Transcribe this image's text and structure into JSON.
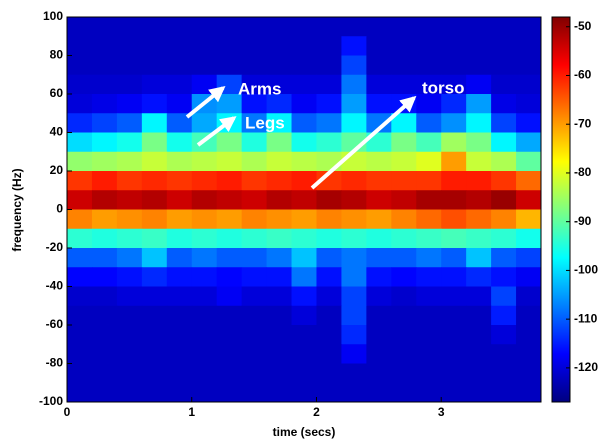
{
  "chart_data": {
    "type": "heatmap",
    "xlabel": "time (secs)",
    "ylabel": "frequency (Hz)",
    "x": [
      0.1,
      0.3,
      0.5,
      0.7,
      0.9,
      1.1,
      1.3,
      1.5,
      1.7,
      1.9,
      2.1,
      2.3,
      2.5,
      2.7,
      2.9,
      3.1,
      3.3,
      3.5,
      3.7
    ],
    "y": [
      95,
      85,
      75,
      65,
      55,
      45,
      35,
      25,
      15,
      5,
      -5,
      -15,
      -25,
      -35,
      -45,
      -55,
      -65,
      -75,
      -85,
      -95
    ],
    "values": [
      [
        -122,
        -122,
        -122,
        -122,
        -122,
        -122,
        -122,
        -122,
        -122,
        -122,
        -122,
        -122,
        -122,
        -122,
        -122,
        -122,
        -122,
        -122,
        -122
      ],
      [
        -122,
        -122,
        -122,
        -122,
        -122,
        -122,
        -122,
        -122,
        -122,
        -122,
        -122,
        -116,
        -122,
        -122,
        -122,
        -122,
        -122,
        -122,
        -122
      ],
      [
        -122,
        -122,
        -122,
        -122,
        -122,
        -122,
        -122,
        -122,
        -122,
        -122,
        -122,
        -112,
        -122,
        -122,
        -122,
        -122,
        -122,
        -122,
        -122
      ],
      [
        -121,
        -121,
        -121,
        -120,
        -120,
        -118,
        -112,
        -120,
        -120,
        -120,
        -120,
        -108,
        -120,
        -120,
        -120,
        -120,
        -118,
        -121,
        -121
      ],
      [
        -120,
        -119,
        -118,
        -116,
        -118,
        -106,
        -105,
        -116,
        -114,
        -118,
        -116,
        -105,
        -116,
        -116,
        -118,
        -114,
        -105,
        -119,
        -120
      ],
      [
        -114,
        -112,
        -110,
        -98,
        -110,
        -104,
        -98,
        -108,
        -98,
        -110,
        -108,
        -98,
        -108,
        -98,
        -110,
        -106,
        -98,
        -112,
        -116
      ],
      [
        -100,
        -98,
        -96,
        -88,
        -96,
        -92,
        -88,
        -95,
        -88,
        -96,
        -94,
        -90,
        -94,
        -88,
        -92,
        -85,
        -88,
        -98,
        -104
      ],
      [
        -86,
        -85,
        -84,
        -82,
        -84,
        -83,
        -82,
        -84,
        -82,
        -83,
        -84,
        -82,
        -83,
        -82,
        -80,
        -70,
        -82,
        -84,
        -90
      ],
      [
        -62,
        -60,
        -62,
        -61,
        -62,
        -61,
        -60,
        -62,
        -61,
        -60,
        -62,
        -61,
        -62,
        -62,
        -62,
        -60,
        -60,
        -62,
        -66
      ],
      [
        -54,
        -52,
        -53,
        -52,
        -54,
        -52,
        -53,
        -54,
        -52,
        -53,
        -51,
        -52,
        -54,
        -53,
        -51,
        -51,
        -52,
        -50,
        -54
      ],
      [
        -68,
        -70,
        -69,
        -68,
        -70,
        -69,
        -70,
        -68,
        -69,
        -70,
        -68,
        -69,
        -70,
        -68,
        -66,
        -64,
        -66,
        -68,
        -72
      ],
      [
        -94,
        -95,
        -94,
        -93,
        -95,
        -94,
        -95,
        -94,
        -93,
        -94,
        -95,
        -94,
        -95,
        -94,
        -93,
        -92,
        -93,
        -94,
        -96
      ],
      [
        -110,
        -110,
        -108,
        -102,
        -110,
        -108,
        -110,
        -110,
        -108,
        -102,
        -110,
        -108,
        -110,
        -110,
        -108,
        -110,
        -102,
        -110,
        -112
      ],
      [
        -117,
        -117,
        -116,
        -114,
        -116,
        -116,
        -117,
        -116,
        -116,
        -108,
        -116,
        -108,
        -116,
        -117,
        -116,
        -116,
        -114,
        -116,
        -118
      ],
      [
        -121,
        -121,
        -120,
        -120,
        -120,
        -120,
        -118,
        -120,
        -120,
        -116,
        -120,
        -112,
        -120,
        -121,
        -120,
        -120,
        -120,
        -112,
        -121
      ],
      [
        -122,
        -122,
        -122,
        -122,
        -122,
        -122,
        -122,
        -122,
        -122,
        -120,
        -122,
        -112,
        -122,
        -122,
        -122,
        -122,
        -122,
        -115,
        -122
      ],
      [
        -122,
        -122,
        -122,
        -122,
        -122,
        -122,
        -122,
        -122,
        -122,
        -122,
        -122,
        -114,
        -122,
        -122,
        -122,
        -122,
        -122,
        -120,
        -122
      ],
      [
        -122,
        -122,
        -122,
        -122,
        -122,
        -122,
        -122,
        -122,
        -122,
        -122,
        -122,
        -118,
        -122,
        -122,
        -122,
        -122,
        -122,
        -122,
        -122
      ],
      [
        -122,
        -122,
        -122,
        -122,
        -122,
        -122,
        -122,
        -122,
        -122,
        -122,
        -122,
        -122,
        -122,
        -122,
        -122,
        -122,
        -122,
        -122,
        -122
      ],
      [
        -122,
        -122,
        -122,
        -122,
        -122,
        -122,
        -122,
        -122,
        -122,
        -122,
        -122,
        -122,
        -122,
        -122,
        -122,
        -122,
        -122,
        -122,
        -122
      ]
    ],
    "xlim": [
      0,
      3.8
    ],
    "xticks": [
      0,
      1,
      2,
      3
    ],
    "ylim": [
      -100,
      100
    ],
    "yticks": [
      -100,
      -80,
      -60,
      -40,
      -20,
      0,
      20,
      40,
      60,
      80,
      100
    ],
    "clim": [
      -127,
      -48
    ],
    "cticks": [
      -120,
      -110,
      -100,
      -90,
      -80,
      -70,
      -60,
      -50
    ],
    "colormap": "jet",
    "annotations": [
      {
        "text": "Arms"
      },
      {
        "text": "Legs"
      },
      {
        "text": "torso"
      }
    ]
  }
}
